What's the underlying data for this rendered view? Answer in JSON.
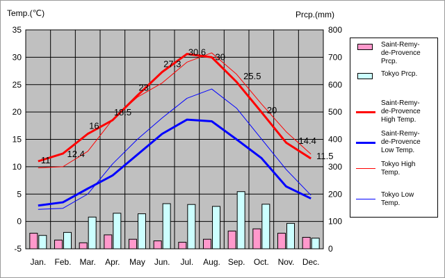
{
  "chart_data": {
    "type": "bar",
    "title": "",
    "left_axis_label": "Temp.(℃)",
    "right_axis_label": "Prcp.(mm)",
    "categories": [
      "Jan.",
      "Feb.",
      "Mar.",
      "Apr.",
      "May",
      "Jun.",
      "Jul.",
      "Aug.",
      "Sep.",
      "Oct.",
      "Nov.",
      "Dec."
    ],
    "temp_ylim": [
      -5,
      35
    ],
    "temp_ticks": [
      "35",
      "30",
      "25",
      "20",
      "15",
      "10",
      "5",
      "0",
      "-5"
    ],
    "prcp_ylim": [
      0,
      800
    ],
    "prcp_ticks": [
      "800",
      "700",
      "600",
      "500",
      "400",
      "300",
      "200",
      "100",
      "0"
    ],
    "grid": true,
    "legend_position": "right",
    "series": [
      {
        "name": "Saint-Remy-de-Provence Prcp.",
        "legend_lines": [
          "Saint-Remy-",
          "de-Provence",
          "Prcp."
        ],
        "kind": "bar",
        "axis": "right",
        "color": "#ff99cc",
        "values": [
          57,
          32,
          22,
          51,
          35,
          29,
          24,
          35,
          65,
          73,
          57,
          42
        ]
      },
      {
        "name": "Tokyo Prcp.",
        "legend_lines": [
          "Tokyo Prcp."
        ],
        "kind": "bar",
        "axis": "right",
        "color": "#ccffff",
        "values": [
          49,
          60,
          116,
          130,
          128,
          165,
          162,
          155,
          209,
          163,
          93,
          39
        ]
      },
      {
        "name": "Saint-Remy-de-Provence High Temp.",
        "legend_lines": [
          "Saint-Remy-",
          "de-Provence",
          "High Temp."
        ],
        "kind": "line",
        "axis": "left",
        "color": "#ff0000",
        "width": 3,
        "values": [
          11,
          12.4,
          16,
          18.5,
          23,
          27.3,
          30.6,
          30,
          25.5,
          20,
          14.4,
          11.5
        ],
        "labels": [
          "11",
          "12.4",
          "16",
          "18.5",
          "23",
          "27.3",
          "30.6",
          "30",
          "25.5",
          "20",
          "14.4",
          "11.5"
        ]
      },
      {
        "name": "Saint-Remy-de-Provence Low Temp.",
        "legend_lines": [
          "Saint-Remy-",
          "de-Provence",
          "Low Temp."
        ],
        "kind": "line",
        "axis": "left",
        "color": "#0000ff",
        "width": 3,
        "values": [
          2.9,
          3.5,
          6,
          8.4,
          12.2,
          16,
          18.6,
          18.3,
          15,
          11.6,
          6.4,
          4.2
        ]
      },
      {
        "name": "Tokyo High Temp.",
        "legend_lines": [
          "Tokyo High",
          "Temp."
        ],
        "kind": "line",
        "axis": "left",
        "color": "#ff0000",
        "width": 1,
        "values": [
          9.8,
          10,
          12.8,
          18.6,
          22.7,
          25.3,
          29.1,
          30.8,
          26.9,
          21.5,
          16.4,
          12.3
        ]
      },
      {
        "name": "Tokyo Low Temp.",
        "legend_lines": [
          "Tokyo Low",
          "Temp."
        ],
        "kind": "line",
        "axis": "left",
        "color": "#0000ff",
        "width": 1,
        "values": [
          2.2,
          2.4,
          5,
          10.5,
          15,
          18.9,
          22.5,
          24.2,
          20.7,
          15.1,
          9.5,
          4.8
        ]
      }
    ]
  }
}
